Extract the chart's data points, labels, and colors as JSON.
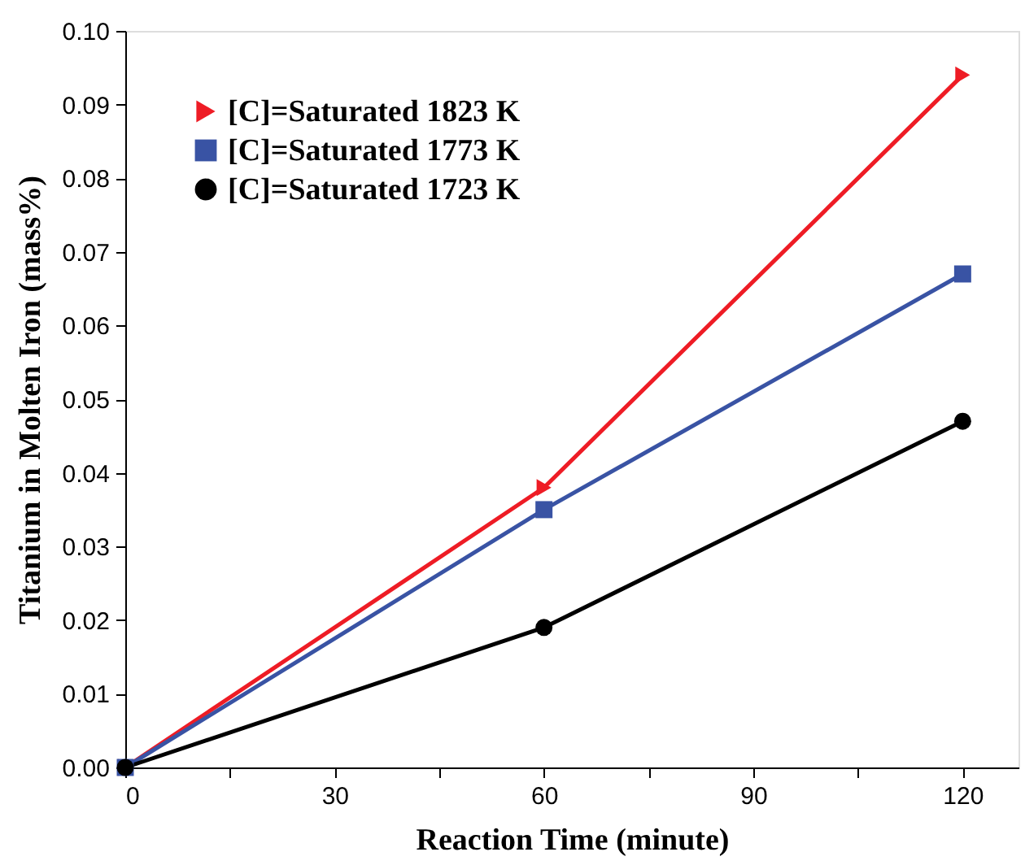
{
  "chart_data": {
    "type": "line",
    "xlabel": "Reaction Time (minute)",
    "ylabel": "Titanium in Molten Iron (mass%)",
    "x": [
      0,
      60,
      120
    ],
    "series": [
      {
        "name": "[C]=Saturated   1823 K",
        "color": "#ee1c25",
        "marker": "triangle",
        "values": [
          0,
          0.038,
          0.094
        ]
      },
      {
        "name": "[C]=Saturated   1773 K",
        "color": "#3953a4",
        "marker": "square",
        "values": [
          0,
          0.035,
          0.067
        ]
      },
      {
        "name": "[C]=Saturated   1723 K",
        "color": "#000000",
        "marker": "circle",
        "values": [
          0,
          0.019,
          0.047
        ]
      }
    ],
    "xlim": [
      0,
      128
    ],
    "ylim": [
      0,
      0.1
    ],
    "xticks": [
      0,
      {
        "value": 15,
        "label": null
      },
      30,
      {
        "value": 45,
        "label": null
      },
      60,
      {
        "value": 75,
        "label": null
      },
      90,
      {
        "value": 105,
        "label": null
      },
      120
    ],
    "yticks": [
      {
        "value": 0,
        "label": "0.00"
      },
      {
        "value": 0.01,
        "label": "0.01"
      },
      {
        "value": 0.02,
        "label": "0.02"
      },
      {
        "value": 0.03,
        "label": "0.03"
      },
      {
        "value": 0.04,
        "label": "0.04"
      },
      {
        "value": 0.05,
        "label": "0.05"
      },
      {
        "value": 0.06,
        "label": "0.06"
      },
      {
        "value": 0.07,
        "label": "0.07"
      },
      {
        "value": 0.08,
        "label": "0.08"
      },
      {
        "value": 0.09,
        "label": "0.09"
      },
      {
        "value": 0.1,
        "label": "0.10"
      }
    ],
    "grid": false,
    "legend": "top left",
    "line_style": "solid"
  }
}
